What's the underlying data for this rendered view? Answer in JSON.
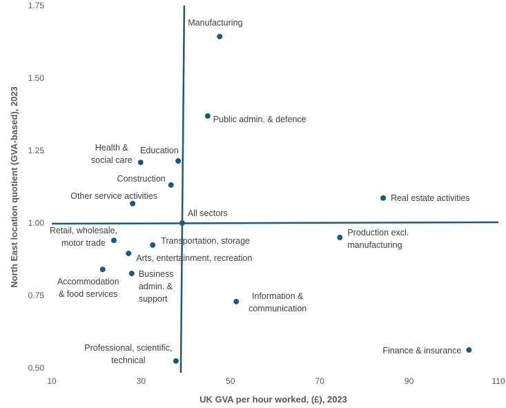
{
  "chart_data": {
    "type": "scatter",
    "title": "",
    "xlabel": "UK GVA per hour worked, (£), 2023",
    "ylabel": "North East location quotient (GVA-based), 2023",
    "xlim": [
      10,
      110
    ],
    "ylim": [
      0.5,
      1.75
    ],
    "xticks": [
      "10",
      "30",
      "50",
      "70",
      "90",
      "110"
    ],
    "yticks": [
      "0.50",
      "0.75",
      "1.00",
      "1.25",
      "1.50",
      "1.75"
    ],
    "grid": false,
    "color": "#1b5a7e",
    "reference_lines": {
      "x": 39.2,
      "y": 1.0
    },
    "points": [
      {
        "label": [
          "Manufacturing"
        ],
        "x": 47.6,
        "y": 1.643
      },
      {
        "label": [
          "Public admin. & defence"
        ],
        "x": 44.9,
        "y": 1.369
      },
      {
        "label": [
          "Health &",
          "social care"
        ],
        "x": 29.9,
        "y": 1.209
      },
      {
        "label": [
          "Education"
        ],
        "x": 38.3,
        "y": 1.214
      },
      {
        "label": [
          "Construction"
        ],
        "x": 36.7,
        "y": 1.131
      },
      {
        "label": [
          "Other service activities"
        ],
        "x": 28.1,
        "y": 1.067
      },
      {
        "label": [
          "All sectors"
        ],
        "x": 39.2,
        "y": 1.0
      },
      {
        "label": [
          "Real estate activities"
        ],
        "x": 84.2,
        "y": 1.086
      },
      {
        "label": [
          "Production excl.",
          "manufacturing"
        ],
        "x": 74.5,
        "y": 0.95
      },
      {
        "label": [
          "Retail, wholesale,",
          "motor trade"
        ],
        "x": 23.9,
        "y": 0.94
      },
      {
        "label": [
          "Transportation, storage"
        ],
        "x": 32.6,
        "y": 0.924
      },
      {
        "label": [
          "Arts, entertainment, recreation"
        ],
        "x": 27.2,
        "y": 0.895
      },
      {
        "label": [
          "Accommodation",
          "& food services"
        ],
        "x": 21.4,
        "y": 0.84
      },
      {
        "label": [
          "Business",
          "admin. &",
          "support"
        ],
        "x": 27.9,
        "y": 0.826
      },
      {
        "label": [
          "Information &",
          "communication"
        ],
        "x": 51.3,
        "y": 0.729
      },
      {
        "label": [
          "Professional, scientific,",
          "technical"
        ],
        "x": 37.8,
        "y": 0.524
      },
      {
        "label": [
          "Finance & insurance"
        ],
        "x": 103.4,
        "y": 0.562
      }
    ]
  }
}
